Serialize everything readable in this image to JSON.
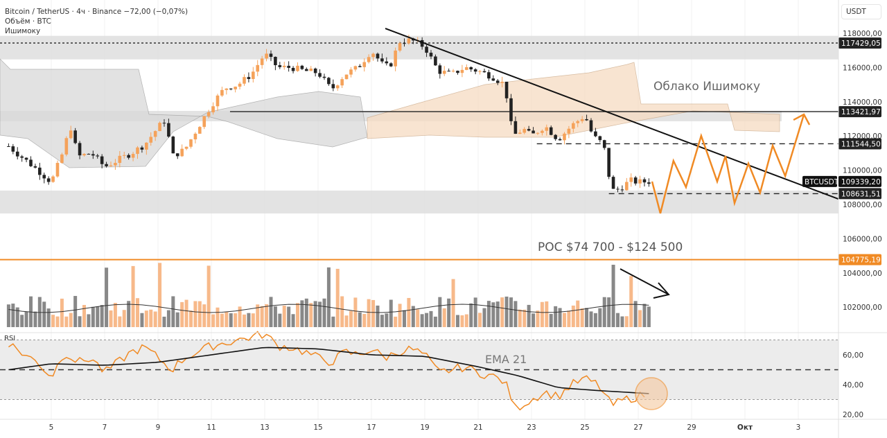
{
  "header": {
    "symbol_line": "Bitcoin / TetherUS · 4ч · Binance  −72,00 (−0,07%)",
    "volume_line": "Объём · BTC",
    "ichimoku_line": "Ишимоку",
    "currency": "USDT"
  },
  "annotations": {
    "cloud": "Облако Ишимоку",
    "poc": "POC $74 700 - $124 500",
    "ema": "EMA 21",
    "rsi_label": "RSI",
    "symbol_tag": "BTCUSDT"
  },
  "chart_data": {
    "type": "candlestick",
    "title": "Bitcoin / TetherUS 4h",
    "ylim": [
      101000,
      118600
    ],
    "price_ticks": [
      "118000,00",
      "116000,00",
      "114000,00",
      "112000,00",
      "110000,00",
      "108000,00",
      "106000,00",
      "104000,00",
      "102000,00"
    ],
    "price_tick_values": [
      118000,
      116000,
      114000,
      112000,
      110000,
      108000,
      106000,
      104000,
      102000
    ],
    "rsi_ticks": [
      "60,00",
      "40,00",
      "20,00"
    ],
    "rsi_tick_values": [
      60,
      40,
      20
    ],
    "x_ticks": [
      "5",
      "7",
      "9",
      "11",
      "13",
      "15",
      "17",
      "19",
      "21",
      "23",
      "25",
      "27",
      "29",
      "Окт",
      "3"
    ],
    "x_tick_days": [
      5,
      7,
      9,
      11,
      13,
      15,
      17,
      19,
      21,
      23,
      25,
      27,
      29,
      31,
      33
    ],
    "levels": [
      {
        "label": "117429,05",
        "value": 117429.05,
        "style": "dotted",
        "from_day": 3
      },
      {
        "label": "113421,97",
        "value": 113421.97,
        "style": "solid",
        "from_day": 11.7
      },
      {
        "label": "111544,50",
        "value": 111544.5,
        "style": "dashed",
        "from_day": 23.2
      },
      {
        "label": "108631,51",
        "value": 108631.51,
        "style": "dashed",
        "from_day": 25.9
      },
      {
        "label": "104775,19",
        "value": 104775.19,
        "style": "poc",
        "from_day": 3
      }
    ],
    "last_price": {
      "label": "109339,20",
      "value": 109339.2
    },
    "price_waypoints": [
      [
        3.4,
        111400
      ],
      [
        4.5,
        110000
      ],
      [
        5,
        109300
      ],
      [
        5.5,
        111300
      ],
      [
        5.7,
        112700
      ],
      [
        6,
        110800
      ],
      [
        6.5,
        111000
      ],
      [
        7,
        110200
      ],
      [
        7.5,
        110600
      ],
      [
        8,
        111000
      ],
      [
        8.5,
        111500
      ],
      [
        9,
        112500
      ],
      [
        9.3,
        113000
      ],
      [
        9.5,
        110800
      ],
      [
        10,
        111200
      ],
      [
        10.5,
        112500
      ],
      [
        11,
        113800
      ],
      [
        11.5,
        114800
      ],
      [
        12,
        115000
      ],
      [
        12.5,
        115600
      ],
      [
        13,
        116800
      ],
      [
        13.5,
        116000
      ],
      [
        14,
        116000
      ],
      [
        14.5,
        115800
      ],
      [
        15,
        115700
      ],
      [
        15.5,
        114700
      ],
      [
        16,
        115600
      ],
      [
        16.5,
        116000
      ],
      [
        17,
        117000
      ],
      [
        17.5,
        116000
      ],
      [
        17.8,
        116300
      ],
      [
        18,
        117500
      ],
      [
        18.5,
        117600
      ],
      [
        19,
        117200
      ],
      [
        19.5,
        115800
      ],
      [
        20,
        115600
      ],
      [
        20.5,
        116000
      ],
      [
        21,
        115800
      ],
      [
        21.5,
        115500
      ],
      [
        22,
        115000
      ],
      [
        22.3,
        112000
      ],
      [
        22.7,
        112400
      ],
      [
        23,
        112000
      ],
      [
        23.5,
        112600
      ],
      [
        24,
        111800
      ],
      [
        24.5,
        112600
      ],
      [
        25,
        113200
      ],
      [
        25.3,
        112000
      ],
      [
        25.7,
        111500
      ],
      [
        26,
        108800
      ],
      [
        26.3,
        108900
      ],
      [
        26.7,
        109400
      ],
      [
        27,
        109300
      ],
      [
        27.4,
        109339
      ]
    ],
    "projection": [
      [
        27.52,
        109340
      ],
      [
        27.83,
        107480
      ],
      [
        28.32,
        110550
      ],
      [
        28.79,
        109010
      ],
      [
        29.36,
        112010
      ],
      [
        29.96,
        109340
      ],
      [
        30.27,
        110830
      ],
      [
        30.61,
        108080
      ],
      [
        31.13,
        110390
      ],
      [
        31.57,
        108690
      ],
      [
        32.04,
        111440
      ],
      [
        32.51,
        109660
      ],
      [
        33.21,
        113260
      ]
    ],
    "trendline": [
      [
        17.52,
        118280
      ],
      [
        34.5,
        108320
      ]
    ],
    "rsi_waypoints": [
      [
        3.4,
        68
      ],
      [
        4,
        60
      ],
      [
        4.5,
        55
      ],
      [
        5,
        45
      ],
      [
        5.5,
        62
      ],
      [
        6,
        55
      ],
      [
        6.5,
        58
      ],
      [
        7,
        48
      ],
      [
        7.5,
        55
      ],
      [
        8,
        62
      ],
      [
        8.5,
        65
      ],
      [
        9,
        58
      ],
      [
        9.5,
        50
      ],
      [
        10,
        58
      ],
      [
        10.5,
        62
      ],
      [
        11,
        66
      ],
      [
        11.5,
        68
      ],
      [
        12,
        70
      ],
      [
        12.5,
        72
      ],
      [
        13,
        74
      ],
      [
        13.5,
        66
      ],
      [
        14,
        65
      ],
      [
        14.5,
        62
      ],
      [
        15,
        58
      ],
      [
        15.5,
        55
      ],
      [
        16,
        62
      ],
      [
        16.5,
        60
      ],
      [
        17,
        64
      ],
      [
        17.5,
        58
      ],
      [
        18,
        62
      ],
      [
        18.5,
        64
      ],
      [
        19,
        60
      ],
      [
        19.5,
        48
      ],
      [
        20,
        50
      ],
      [
        20.5,
        52
      ],
      [
        21,
        48
      ],
      [
        21.5,
        46
      ],
      [
        22,
        42
      ],
      [
        22.4,
        24
      ],
      [
        23,
        30
      ],
      [
        23.5,
        35
      ],
      [
        24,
        32
      ],
      [
        24.5,
        40
      ],
      [
        25,
        44
      ],
      [
        25.5,
        40
      ],
      [
        26,
        26
      ],
      [
        26.5,
        30
      ],
      [
        27,
        32
      ],
      [
        27.4,
        34
      ]
    ],
    "ema_waypoints": [
      [
        3.4,
        50
      ],
      [
        5,
        54
      ],
      [
        7,
        53
      ],
      [
        9,
        55
      ],
      [
        11,
        60
      ],
      [
        13,
        65
      ],
      [
        15,
        64
      ],
      [
        17,
        60
      ],
      [
        19,
        59
      ],
      [
        21,
        52
      ],
      [
        22.5,
        46
      ],
      [
        24,
        38
      ],
      [
        25.5,
        36
      ],
      [
        27.4,
        34
      ]
    ]
  }
}
